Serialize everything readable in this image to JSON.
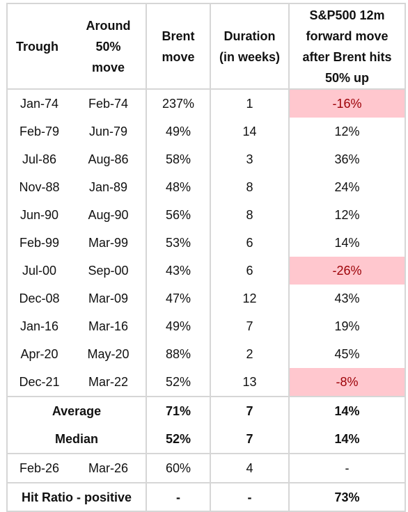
{
  "header": {
    "trough": "Trough",
    "around": "Around\n50%\nmove",
    "brent": "Brent\nmove",
    "duration": "Duration\n(in weeks)",
    "sp500": "S&P500 12m\nforward move\nafter Brent hits\n50% up"
  },
  "rows": [
    {
      "trough": "Jan-74",
      "around": "Feb-74",
      "brent": "237%",
      "duration": "1",
      "sp500": "-16%",
      "negative": true
    },
    {
      "trough": "Feb-79",
      "around": "Jun-79",
      "brent": "49%",
      "duration": "14",
      "sp500": "12%",
      "negative": false
    },
    {
      "trough": "Jul-86",
      "around": "Aug-86",
      "brent": "58%",
      "duration": "3",
      "sp500": "36%",
      "negative": false
    },
    {
      "trough": "Nov-88",
      "around": "Jan-89",
      "brent": "48%",
      "duration": "8",
      "sp500": "24%",
      "negative": false
    },
    {
      "trough": "Jun-90",
      "around": "Aug-90",
      "brent": "56%",
      "duration": "8",
      "sp500": "12%",
      "negative": false
    },
    {
      "trough": "Feb-99",
      "around": "Mar-99",
      "brent": "53%",
      "duration": "6",
      "sp500": "14%",
      "negative": false
    },
    {
      "trough": "Jul-00",
      "around": "Sep-00",
      "brent": "43%",
      "duration": "6",
      "sp500": "-26%",
      "negative": true
    },
    {
      "trough": "Dec-08",
      "around": "Mar-09",
      "brent": "47%",
      "duration": "12",
      "sp500": "43%",
      "negative": false
    },
    {
      "trough": "Jan-16",
      "around": "Mar-16",
      "brent": "49%",
      "duration": "7",
      "sp500": "19%",
      "negative": false
    },
    {
      "trough": "Apr-20",
      "around": "May-20",
      "brent": "88%",
      "duration": "2",
      "sp500": "45%",
      "negative": false
    },
    {
      "trough": "Dec-21",
      "around": "Mar-22",
      "brent": "52%",
      "duration": "13",
      "sp500": "-8%",
      "negative": true
    }
  ],
  "summary": [
    {
      "label": "Average",
      "brent": "71%",
      "duration": "7",
      "sp500": "14%"
    },
    {
      "label": "Median",
      "brent": "52%",
      "duration": "7",
      "sp500": "14%"
    }
  ],
  "current": {
    "trough": "Feb-26",
    "around": "Mar-26",
    "brent": "60%",
    "duration": "4",
    "sp500": "-"
  },
  "hit_ratio": {
    "label": "Hit Ratio - positive",
    "brent": "-",
    "duration": "-",
    "sp500": "73%"
  },
  "colors": {
    "negative_fill": "#ffc7ce",
    "negative_text": "#9c0006",
    "grid": "#d6d6d6"
  }
}
